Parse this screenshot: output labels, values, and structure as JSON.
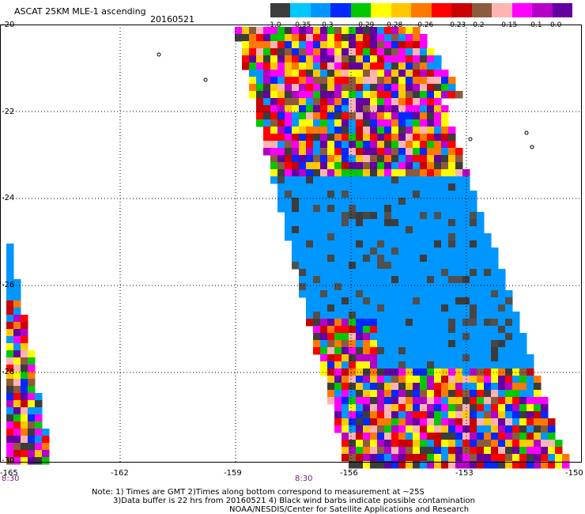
{
  "header": {
    "title": "ASCAT 25KM MLE-1 ascending",
    "date": "20160521"
  },
  "colorbar": {
    "colors": [
      "#3c3c3c",
      "#00c8ff",
      "#0096ff",
      "#0028ff",
      "#00c800",
      "#ffff00",
      "#ffc800",
      "#ff7800",
      "#ff0000",
      "#c80000",
      "#8c5a3c",
      "#ffb4b4",
      "#ff00ff",
      "#b400c8",
      "#6400a0"
    ],
    "labels": [
      "-1.0",
      "-0.35",
      "-0.3",
      "-0.29",
      "-0.28",
      "-0.26",
      "-0.23",
      "-0.2",
      "-0.15",
      "-0.1",
      "0.0"
    ]
  },
  "axes": {
    "lat_labels": [
      "-20",
      "-22",
      "-24",
      "-26",
      "-28",
      "-30"
    ],
    "lon_labels": [
      "-165",
      "-162",
      "-159",
      "-156",
      "-153",
      "-150"
    ],
    "time_labels": [
      "8:30",
      "8:30"
    ]
  },
  "notes": {
    "line1": "Note: 1) Times are GMT 2)Times along bottom correspond to measurement at ~25S",
    "line2": "3)Data buffer is 22 hrs from 20160521 4) Black wind barbs indicate possible contamination",
    "line3": "NOAA/NESDIS/Center for Satellite Applications and Research"
  }
}
